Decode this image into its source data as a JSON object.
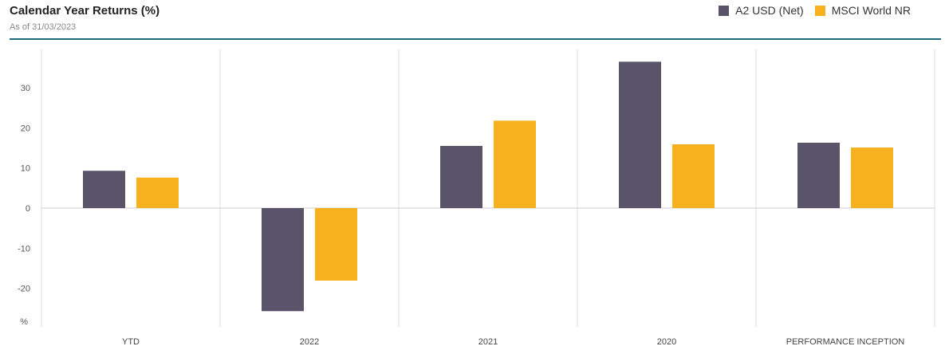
{
  "header": {
    "title": "Calendar Year Returns (%)",
    "subtitle": "As of 31/03/2023"
  },
  "colors": {
    "fund": "#5a546b",
    "benchmark": "#f7b11e",
    "accent_rule": "#1f6b78",
    "grid": "#dddddd"
  },
  "chart_data": {
    "type": "bar",
    "title": "Calendar Year Returns (%)",
    "subtitle": "As of 31/03/2023",
    "categories": [
      "YTD",
      "2022",
      "2021",
      "2020",
      "PERFORMANCE INCEPTION"
    ],
    "series": [
      {
        "name": "A2 USD (Net)",
        "values": [
          9.3,
          -25.7,
          15.5,
          36.5,
          16.3
        ]
      },
      {
        "name": "MSCI World NR",
        "values": [
          7.6,
          -18.1,
          21.8,
          15.9,
          15.1
        ]
      }
    ],
    "yticks": [
      "30",
      "20",
      "10",
      "0",
      "-10",
      "-20"
    ],
    "yunit": "%",
    "ylim": [
      -29.5,
      39.5
    ],
    "legend_position": "top-right",
    "grid": "vertical category separators"
  }
}
